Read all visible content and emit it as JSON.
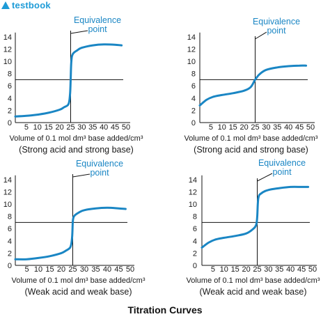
{
  "brand": {
    "logo_text": "testbook"
  },
  "caption": "Titration Curves",
  "chart_data": [
    {
      "type": "line",
      "xlabel": "Volume of 0.1 mol dm³ base added/cm³",
      "subtitle": "(Strong acid and strong base)",
      "annotation": "Equivalence point",
      "annotation_lines": [
        "Equivalence",
        "point"
      ],
      "x_ticks": [
        5,
        10,
        15,
        20,
        25,
        30,
        35,
        40,
        45,
        50
      ],
      "y_ticks": [
        0,
        2,
        4,
        6,
        8,
        10,
        12,
        14
      ],
      "xlim": [
        0,
        50
      ],
      "ylim": [
        0,
        14
      ],
      "hline_y": 7,
      "vline_x": 25,
      "series": [
        {
          "x": [
            0,
            5,
            10,
            15,
            20,
            22,
            24,
            24.7,
            25,
            25.3,
            26,
            28,
            30,
            35,
            40,
            45,
            48
          ],
          "y": [
            1.0,
            1.1,
            1.3,
            1.6,
            2.1,
            2.5,
            3.0,
            4.5,
            7.0,
            10.0,
            11.2,
            11.8,
            12.2,
            12.6,
            12.75,
            12.7,
            12.6
          ]
        }
      ]
    },
    {
      "type": "line",
      "xlabel": "Volume of 0.1 mol dm³ base added/cm³",
      "subtitle": "(Strong acid and strong base)",
      "annotation": "Equivalence point",
      "annotation_lines": [
        "Equivalence",
        "point"
      ],
      "x_ticks": [
        5,
        10,
        15,
        20,
        25,
        30,
        35,
        40,
        45,
        50
      ],
      "y_ticks": [
        0,
        2,
        4,
        6,
        8,
        10,
        12,
        14
      ],
      "xlim": [
        0,
        50
      ],
      "ylim": [
        0,
        14
      ],
      "hline_y": 7,
      "vline_x": 25,
      "series": [
        {
          "x": [
            0,
            3,
            6,
            10,
            15,
            20,
            23,
            25,
            27,
            30,
            35,
            40,
            45,
            48
          ],
          "y": [
            2.8,
            3.7,
            4.2,
            4.5,
            4.8,
            5.2,
            5.8,
            7.0,
            7.9,
            8.6,
            9.0,
            9.2,
            9.3,
            9.3
          ]
        }
      ]
    },
    {
      "type": "line",
      "xlabel": "Volume of 0.1 mol dm³ base added/cm³",
      "subtitle": "(Weak acid and weak base)",
      "annotation": "Equivalence point",
      "annotation_lines": [
        "Equivalence",
        "point"
      ],
      "x_ticks": [
        5,
        10,
        15,
        20,
        25,
        30,
        35,
        40,
        45,
        50
      ],
      "y_ticks": [
        0,
        2,
        4,
        6,
        8,
        10,
        12,
        14
      ],
      "xlim": [
        0,
        50
      ],
      "ylim": [
        0,
        14
      ],
      "hline_y": 7,
      "vline_x": 25,
      "series": [
        {
          "x": [
            0,
            5,
            10,
            15,
            20,
            22,
            24,
            24.7,
            25,
            25.3,
            26,
            28,
            30,
            35,
            40,
            45,
            48
          ],
          "y": [
            1.0,
            1.0,
            1.2,
            1.5,
            2.0,
            2.4,
            3.0,
            4.5,
            7.0,
            7.8,
            8.2,
            8.7,
            9.0,
            9.3,
            9.4,
            9.3,
            9.2
          ]
        }
      ]
    },
    {
      "type": "line",
      "xlabel": "Volume of 0.1 mol dm³ base added/cm³",
      "subtitle": "(Weak acid and weak base)",
      "annotation": "Equivalence point",
      "annotation_lines": [
        "Equivalence",
        "point"
      ],
      "x_ticks": [
        5,
        10,
        15,
        20,
        25,
        30,
        35,
        40,
        45,
        50
      ],
      "y_ticks": [
        0,
        2,
        4,
        6,
        8,
        10,
        12,
        14
      ],
      "xlim": [
        0,
        50
      ],
      "ylim": [
        0,
        14
      ],
      "hline_y": 7,
      "vline_x": 25,
      "series": [
        {
          "x": [
            0,
            3,
            6,
            10,
            15,
            20,
            23,
            24.5,
            25,
            25.5,
            27,
            30,
            35,
            40,
            45,
            48
          ],
          "y": [
            2.9,
            3.7,
            4.2,
            4.5,
            4.8,
            5.2,
            5.9,
            6.6,
            8.0,
            11.0,
            11.8,
            12.3,
            12.6,
            12.8,
            12.8,
            12.8
          ]
        }
      ]
    }
  ],
  "colors": {
    "curve": "#1a86c4",
    "axis": "#111111",
    "text": "#1a1a1a"
  }
}
